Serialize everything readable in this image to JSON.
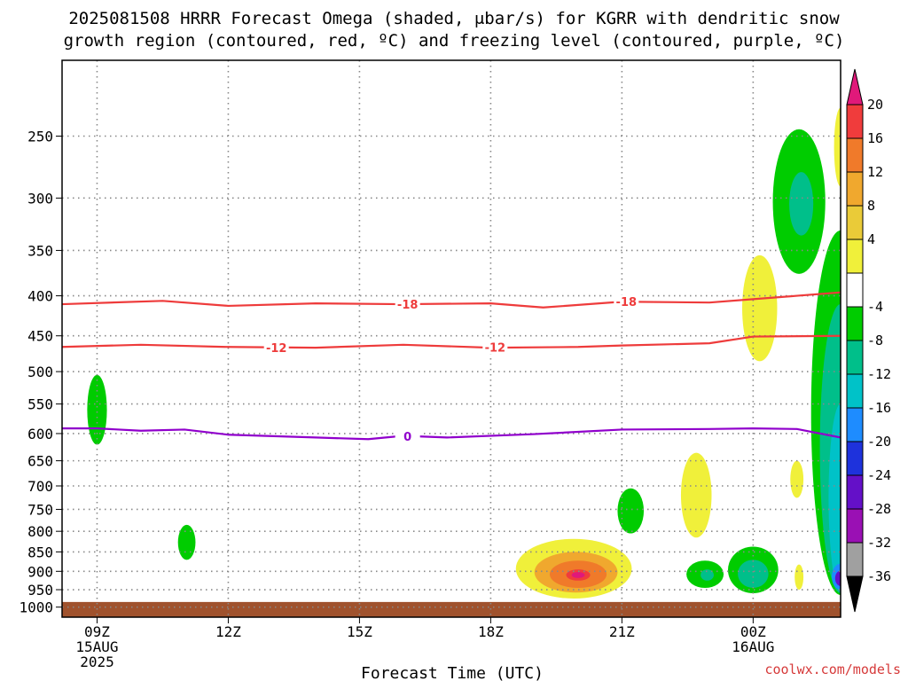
{
  "title_line1": "2025081508 HRRR Forecast Omega (shaded, μbar/s) for KGRR with dendritic snow",
  "title_line2": "growth region (contoured, red, ºC) and freezing level (contoured, purple, ºC)",
  "watermark": "coolwx.com/models",
  "colors": {
    "dendritic": "#ee3b3b",
    "freezing": "#9000cc",
    "ground": "#a0522d",
    "grid": "#888888"
  },
  "chart_data": {
    "type": "contour",
    "xlabel": "Forecast Time (UTC)",
    "ylabel": "",
    "x_ticks": [
      {
        "hour": 9,
        "lines": [
          "09Z",
          "15AUG",
          "2025"
        ]
      },
      {
        "hour": 12,
        "lines": [
          "12Z"
        ]
      },
      {
        "hour": 15,
        "lines": [
          "15Z"
        ]
      },
      {
        "hour": 18,
        "lines": [
          "18Z"
        ]
      },
      {
        "hour": 21,
        "lines": [
          "21Z"
        ]
      },
      {
        "hour": 24,
        "lines": [
          "00Z",
          "16AUG"
        ]
      }
    ],
    "xlim": [
      8.2,
      26.0
    ],
    "y_scale": "log",
    "ylim": [
      1030,
      200
    ],
    "y_ticks": [
      "250",
      "300",
      "350",
      "400",
      "450",
      "500",
      "550",
      "600",
      "650",
      "700",
      "750",
      "800",
      "850",
      "900",
      "950",
      "1000"
    ],
    "surface_pressure": 985,
    "colorbar": {
      "levels": [
        "20",
        "16",
        "12",
        "8",
        "4",
        "-4",
        "-8",
        "-12",
        "-16",
        "-20",
        "-24",
        "-28",
        "-32",
        "-36"
      ],
      "colors": [
        "#e0197a",
        "#f03c3c",
        "#f07a2a",
        "#f0a82e",
        "#eacb38",
        "#f0f03a",
        "#ffffff",
        "#00cc00",
        "#00bf8a",
        "#00c2c8",
        "#1e8cff",
        "#1e32dc",
        "#6410c8",
        "#9a10b4",
        "#a0a0a0",
        "#000000"
      ]
    },
    "contours": [
      {
        "name": "-18",
        "value": -18,
        "color": "#ee3b3b",
        "points": [
          [
            8.2,
            410
          ],
          [
            10.5,
            406
          ],
          [
            12,
            412
          ],
          [
            14,
            409
          ],
          [
            16,
            410
          ],
          [
            18,
            409
          ],
          [
            19.2,
            414
          ],
          [
            21,
            407
          ],
          [
            23,
            408
          ],
          [
            24,
            404
          ],
          [
            25,
            400
          ],
          [
            26,
            396
          ]
        ],
        "label_at": [
          [
            16.1,
            410
          ],
          [
            21.1,
            407
          ]
        ]
      },
      {
        "name": "-12",
        "value": -12,
        "color": "#ee3b3b",
        "points": [
          [
            8.2,
            465
          ],
          [
            10,
            462
          ],
          [
            12,
            465
          ],
          [
            14,
            466
          ],
          [
            16,
            462
          ],
          [
            18,
            466
          ],
          [
            20,
            465
          ],
          [
            21,
            463
          ],
          [
            23,
            460
          ],
          [
            24,
            451
          ],
          [
            26,
            450
          ]
        ],
        "label_at": [
          [
            13.1,
            466
          ],
          [
            18.1,
            465
          ]
        ]
      },
      {
        "name": "0",
        "value": 0,
        "color": "#9000cc",
        "points": [
          [
            8.2,
            591
          ],
          [
            9,
            591
          ],
          [
            10,
            595
          ],
          [
            11,
            593
          ],
          [
            12,
            602
          ],
          [
            14,
            607
          ],
          [
            15.2,
            610
          ],
          [
            16,
            604
          ],
          [
            17,
            607
          ],
          [
            19,
            601
          ],
          [
            21,
            593
          ],
          [
            23,
            592
          ],
          [
            24,
            591
          ],
          [
            25,
            592
          ],
          [
            26,
            607
          ]
        ],
        "label_at": [
          [
            16.1,
            605
          ]
        ]
      }
    ],
    "omega_regions": [
      {
        "value": -6,
        "cx": 9.0,
        "p_top": 505,
        "p_bot": 620,
        "w": 0.45
      },
      {
        "value": -6,
        "cx": 11.05,
        "p_top": 785,
        "p_bot": 870,
        "w": 0.4
      },
      {
        "value": -6,
        "cx": 21.2,
        "p_top": 705,
        "p_bot": 805,
        "w": 0.6
      },
      {
        "value": 6,
        "cx": 22.7,
        "p_top": 635,
        "p_bot": 815,
        "w": 0.7
      },
      {
        "value": -6,
        "cx": 22.9,
        "p_top": 872,
        "p_bot": 945,
        "w": 0.85
      },
      {
        "value": -10,
        "cx": 22.95,
        "p_top": 895,
        "p_bot": 925,
        "w": 0.3
      },
      {
        "value": 6,
        "cx": 19.9,
        "p_top": 818,
        "p_bot": 975,
        "w": 2.65
      },
      {
        "value": 10,
        "cx": 19.95,
        "p_top": 850,
        "p_bot": 958,
        "w": 1.9
      },
      {
        "value": 14,
        "cx": 20.0,
        "p_top": 872,
        "p_bot": 945,
        "w": 1.3
      },
      {
        "value": 18,
        "cx": 20.0,
        "p_top": 895,
        "p_bot": 925,
        "w": 0.55
      },
      {
        "value": 22,
        "cx": 20.0,
        "p_top": 902,
        "p_bot": 918,
        "w": 0.3
      },
      {
        "value": -6,
        "cx": 24.0,
        "p_top": 837,
        "p_bot": 960,
        "w": 1.15
      },
      {
        "value": -10,
        "cx": 24.0,
        "p_top": 870,
        "p_bot": 945,
        "w": 0.7
      },
      {
        "value": 6,
        "cx": 24.15,
        "p_top": 355,
        "p_bot": 485,
        "w": 0.8
      },
      {
        "value": 6,
        "cx": 25.0,
        "p_top": 650,
        "p_bot": 725,
        "w": 0.3
      },
      {
        "value": 6,
        "cx": 25.05,
        "p_top": 882,
        "p_bot": 950,
        "w": 0.2
      },
      {
        "value": -6,
        "cx": 25.05,
        "p_top": 245,
        "p_bot": 375,
        "w": 1.2
      },
      {
        "value": -10,
        "cx": 25.1,
        "p_top": 278,
        "p_bot": 335,
        "w": 0.55
      },
      {
        "value": 6,
        "cx": 26.0,
        "p_top": 230,
        "p_bot": 290,
        "w": 0.3
      },
      {
        "value": -6,
        "cx": 26.0,
        "p_top": 330,
        "p_bot": 965,
        "w": 1.35
      },
      {
        "value": -10,
        "cx": 26.0,
        "p_top": 410,
        "p_bot": 960,
        "w": 0.95
      },
      {
        "value": -14,
        "cx": 26.0,
        "p_top": 550,
        "p_bot": 955,
        "w": 0.55
      },
      {
        "value": -18,
        "cx": 26.0,
        "p_top": 880,
        "p_bot": 950,
        "w": 0.4
      },
      {
        "value": -26,
        "cx": 26.0,
        "p_top": 898,
        "p_bot": 940,
        "w": 0.25
      }
    ]
  }
}
